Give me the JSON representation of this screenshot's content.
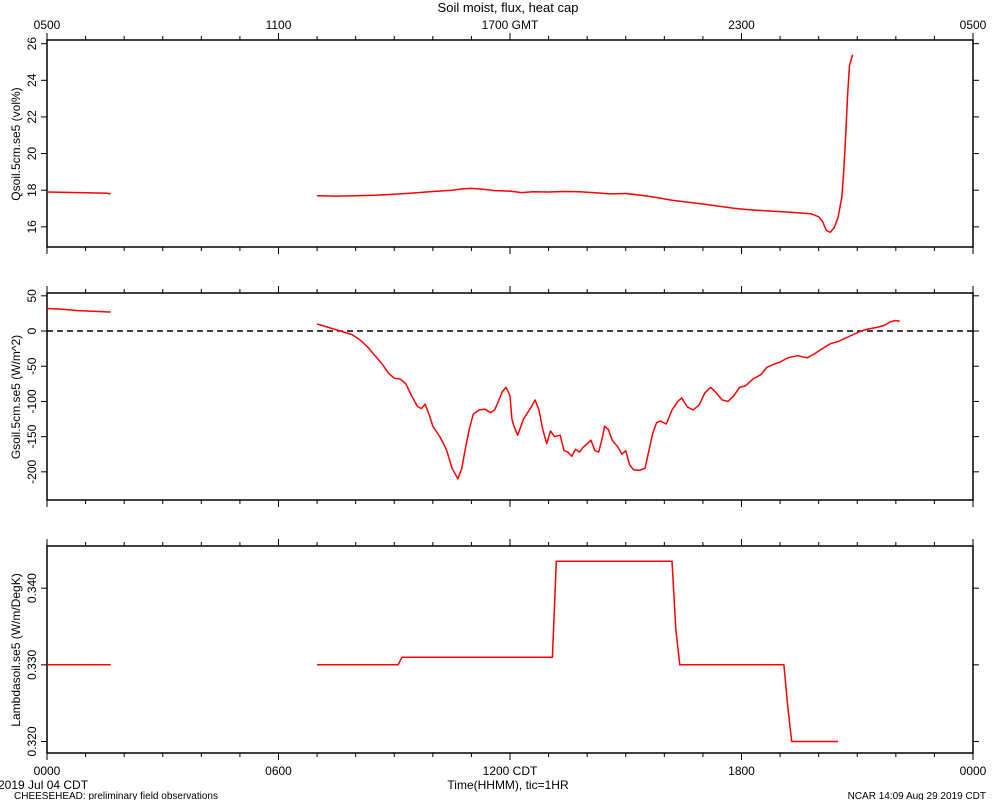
{
  "title": "Soil moist, flux, heat cap",
  "top_axis_ticks": [
    "0500",
    "1100",
    "1700 GMT",
    "2300",
    "0500"
  ],
  "bottom_axis_ticks": [
    "0000",
    "0600",
    "1200 CDT",
    "1800",
    "0000"
  ],
  "xlabel": "Time(HHMM), tic=1HR",
  "footer": {
    "date": "2019 Jul 04 CDT",
    "project": "CHEESEHEAD: preliminary field observations",
    "credit": "NCAR 14:09 Aug 29 2019 CDT"
  },
  "colors": {
    "series": "#ff0000",
    "axis": "#000000",
    "zero_line": "#000000"
  },
  "chart_data": [
    {
      "type": "line",
      "ylabel": "Qsoil.5cm.se5 (vol%)",
      "xlim": [
        0,
        24
      ],
      "ylim": [
        14.9,
        26.2
      ],
      "yticks": [
        "16",
        "18",
        "20",
        "22",
        "24",
        "26"
      ],
      "ytick_values": [
        16,
        18,
        20,
        22,
        24,
        26
      ],
      "series": [
        {
          "values": [
            [
              0.0,
              17.9
            ],
            [
              0.5,
              17.88
            ],
            [
              1.0,
              17.86
            ],
            [
              1.3,
              17.85
            ],
            [
              1.5,
              17.84
            ],
            [
              1.6,
              17.82
            ],
            [
              1.65,
              17.8
            ]
          ]
        },
        {
          "values": [
            [
              7.0,
              17.7
            ],
            [
              7.5,
              17.68
            ],
            [
              8.0,
              17.7
            ],
            [
              8.5,
              17.72
            ],
            [
              9.0,
              17.78
            ],
            [
              9.5,
              17.85
            ],
            [
              10.0,
              17.93
            ],
            [
              10.5,
              18.0
            ],
            [
              10.8,
              18.08
            ],
            [
              11.0,
              18.1
            ],
            [
              11.3,
              18.05
            ],
            [
              11.6,
              17.98
            ],
            [
              12.0,
              17.95
            ],
            [
              12.3,
              17.87
            ],
            [
              12.6,
              17.92
            ],
            [
              13.0,
              17.9
            ],
            [
              13.4,
              17.93
            ],
            [
              13.8,
              17.92
            ],
            [
              14.2,
              17.86
            ],
            [
              14.6,
              17.8
            ],
            [
              15.0,
              17.82
            ],
            [
              15.4,
              17.72
            ],
            [
              15.8,
              17.6
            ],
            [
              16.2,
              17.45
            ],
            [
              16.6,
              17.35
            ],
            [
              17.0,
              17.25
            ],
            [
              17.4,
              17.13
            ],
            [
              17.8,
              17.02
            ],
            [
              18.2,
              16.93
            ],
            [
              18.6,
              16.88
            ],
            [
              19.0,
              16.83
            ],
            [
              19.4,
              16.78
            ],
            [
              19.8,
              16.72
            ],
            [
              20.0,
              16.55
            ],
            [
              20.1,
              16.3
            ],
            [
              20.2,
              15.8
            ],
            [
              20.3,
              15.7
            ],
            [
              20.4,
              15.95
            ],
            [
              20.5,
              16.5
            ],
            [
              20.6,
              17.6
            ],
            [
              20.65,
              19.0
            ],
            [
              20.7,
              21.0
            ],
            [
              20.75,
              23.2
            ],
            [
              20.8,
              24.8
            ],
            [
              20.88,
              25.4
            ]
          ]
        }
      ]
    },
    {
      "type": "line",
      "ylabel": "Gsoil.5cm.se5 (W/m^2)",
      "xlim": [
        0,
        24
      ],
      "ylim": [
        -240,
        54
      ],
      "yticks": [
        "50",
        "0",
        "-50",
        "-100",
        "-150",
        "-200"
      ],
      "ytick_values": [
        50,
        0,
        -50,
        -100,
        -150,
        -200
      ],
      "reference_line": 0,
      "series": [
        {
          "values": [
            [
              0.0,
              32
            ],
            [
              0.4,
              31
            ],
            [
              0.8,
              29
            ],
            [
              1.2,
              28
            ],
            [
              1.6,
              27
            ],
            [
              1.65,
              27
            ]
          ]
        },
        {
          "values": [
            [
              7.0,
              10
            ],
            [
              7.3,
              5
            ],
            [
              7.6,
              0
            ],
            [
              7.9,
              -5
            ],
            [
              8.1,
              -12
            ],
            [
              8.3,
              -22
            ],
            [
              8.5,
              -35
            ],
            [
              8.7,
              -48
            ],
            [
              8.85,
              -60
            ],
            [
              9.0,
              -67
            ],
            [
              9.15,
              -68
            ],
            [
              9.3,
              -75
            ],
            [
              9.45,
              -92
            ],
            [
              9.6,
              -107
            ],
            [
              9.7,
              -110
            ],
            [
              9.8,
              -104
            ],
            [
              9.9,
              -118
            ],
            [
              10.0,
              -135
            ],
            [
              10.2,
              -152
            ],
            [
              10.35,
              -168
            ],
            [
              10.5,
              -195
            ],
            [
              10.6,
              -205
            ],
            [
              10.65,
              -210
            ],
            [
              10.75,
              -195
            ],
            [
              10.85,
              -165
            ],
            [
              10.95,
              -138
            ],
            [
              11.05,
              -118
            ],
            [
              11.2,
              -112
            ],
            [
              11.35,
              -111
            ],
            [
              11.5,
              -116
            ],
            [
              11.6,
              -112
            ],
            [
              11.7,
              -100
            ],
            [
              11.8,
              -86
            ],
            [
              11.9,
              -80
            ],
            [
              12.0,
              -92
            ],
            [
              12.05,
              -125
            ],
            [
              12.1,
              -135
            ],
            [
              12.2,
              -148
            ],
            [
              12.35,
              -125
            ],
            [
              12.55,
              -108
            ],
            [
              12.65,
              -98
            ],
            [
              12.75,
              -112
            ],
            [
              12.85,
              -140
            ],
            [
              12.95,
              -160
            ],
            [
              13.05,
              -142
            ],
            [
              13.15,
              -150
            ],
            [
              13.3,
              -148
            ],
            [
              13.4,
              -170
            ],
            [
              13.5,
              -172
            ],
            [
              13.6,
              -178
            ],
            [
              13.7,
              -168
            ],
            [
              13.8,
              -172
            ],
            [
              13.9,
              -165
            ],
            [
              14.0,
              -160
            ],
            [
              14.1,
              -155
            ],
            [
              14.2,
              -170
            ],
            [
              14.3,
              -172
            ],
            [
              14.4,
              -150
            ],
            [
              14.45,
              -135
            ],
            [
              14.55,
              -140
            ],
            [
              14.65,
              -155
            ],
            [
              14.8,
              -165
            ],
            [
              14.9,
              -175
            ],
            [
              15.0,
              -170
            ],
            [
              15.1,
              -190
            ],
            [
              15.2,
              -197
            ],
            [
              15.35,
              -198
            ],
            [
              15.5,
              -195
            ],
            [
              15.6,
              -170
            ],
            [
              15.7,
              -145
            ],
            [
              15.8,
              -130
            ],
            [
              15.9,
              -128
            ],
            [
              16.05,
              -132
            ],
            [
              16.2,
              -112
            ],
            [
              16.35,
              -100
            ],
            [
              16.45,
              -95
            ],
            [
              16.6,
              -108
            ],
            [
              16.75,
              -112
            ],
            [
              16.9,
              -105
            ],
            [
              17.05,
              -88
            ],
            [
              17.2,
              -80
            ],
            [
              17.35,
              -88
            ],
            [
              17.5,
              -98
            ],
            [
              17.65,
              -100
            ],
            [
              17.8,
              -92
            ],
            [
              17.95,
              -80
            ],
            [
              18.1,
              -78
            ],
            [
              18.3,
              -68
            ],
            [
              18.5,
              -62
            ],
            [
              18.65,
              -52
            ],
            [
              18.8,
              -48
            ],
            [
              19.0,
              -44
            ],
            [
              19.2,
              -38
            ],
            [
              19.45,
              -35
            ],
            [
              19.7,
              -38
            ],
            [
              19.9,
              -32
            ],
            [
              20.1,
              -25
            ],
            [
              20.3,
              -18
            ],
            [
              20.5,
              -15
            ],
            [
              20.7,
              -10
            ],
            [
              20.9,
              -5
            ],
            [
              21.1,
              0
            ],
            [
              21.3,
              3
            ],
            [
              21.5,
              5
            ],
            [
              21.7,
              8
            ],
            [
              21.85,
              13
            ],
            [
              22.0,
              15
            ],
            [
              22.1,
              14
            ]
          ]
        }
      ]
    },
    {
      "type": "line",
      "ylabel": "Lambdasoil.se5 (W/m/DegK)",
      "xlim": [
        0,
        24
      ],
      "ylim": [
        0.3185,
        0.3455
      ],
      "yticks": [
        "0.320",
        "0.330",
        "0.340"
      ],
      "ytick_values": [
        0.32,
        0.33,
        0.34
      ],
      "series": [
        {
          "values": [
            [
              0.0,
              0.33
            ],
            [
              1.65,
              0.33
            ]
          ]
        },
        {
          "values": [
            [
              7.0,
              0.33
            ],
            [
              9.1,
              0.33
            ],
            [
              9.2,
              0.331
            ],
            [
              13.1,
              0.331
            ],
            [
              13.2,
              0.3435
            ],
            [
              16.2,
              0.3435
            ],
            [
              16.3,
              0.3345
            ],
            [
              16.4,
              0.33
            ],
            [
              19.1,
              0.33
            ],
            [
              19.2,
              0.3245
            ],
            [
              19.3,
              0.32
            ],
            [
              20.5,
              0.32
            ]
          ]
        }
      ]
    }
  ]
}
